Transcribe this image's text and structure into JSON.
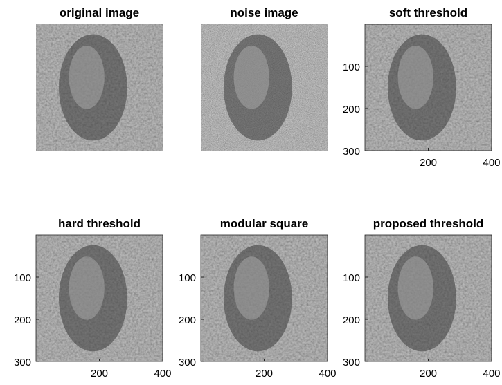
{
  "panels": [
    {
      "title": "original image"
    },
    {
      "title": "noise image"
    },
    {
      "title": "soft threshold",
      "xlim": [
        0,
        400
      ],
      "ylim": [
        0,
        300
      ],
      "xticks": [
        200,
        400
      ],
      "yticks": [
        100,
        200,
        300
      ]
    },
    {
      "title": "hard threshold",
      "xlim": [
        0,
        400
      ],
      "ylim": [
        0,
        300
      ],
      "xticks": [
        200,
        400
      ],
      "yticks": [
        100,
        200,
        300
      ]
    },
    {
      "title": "modular square",
      "xlim": [
        0,
        400
      ],
      "ylim": [
        0,
        300
      ],
      "xticks": [
        200,
        400
      ],
      "yticks": [
        100,
        200,
        300
      ]
    },
    {
      "title": "proposed threshold",
      "xlim": [
        0,
        400
      ],
      "ylim": [
        0,
        300
      ],
      "xticks": [
        200,
        400
      ],
      "yticks": [
        100,
        200,
        300
      ]
    }
  ]
}
